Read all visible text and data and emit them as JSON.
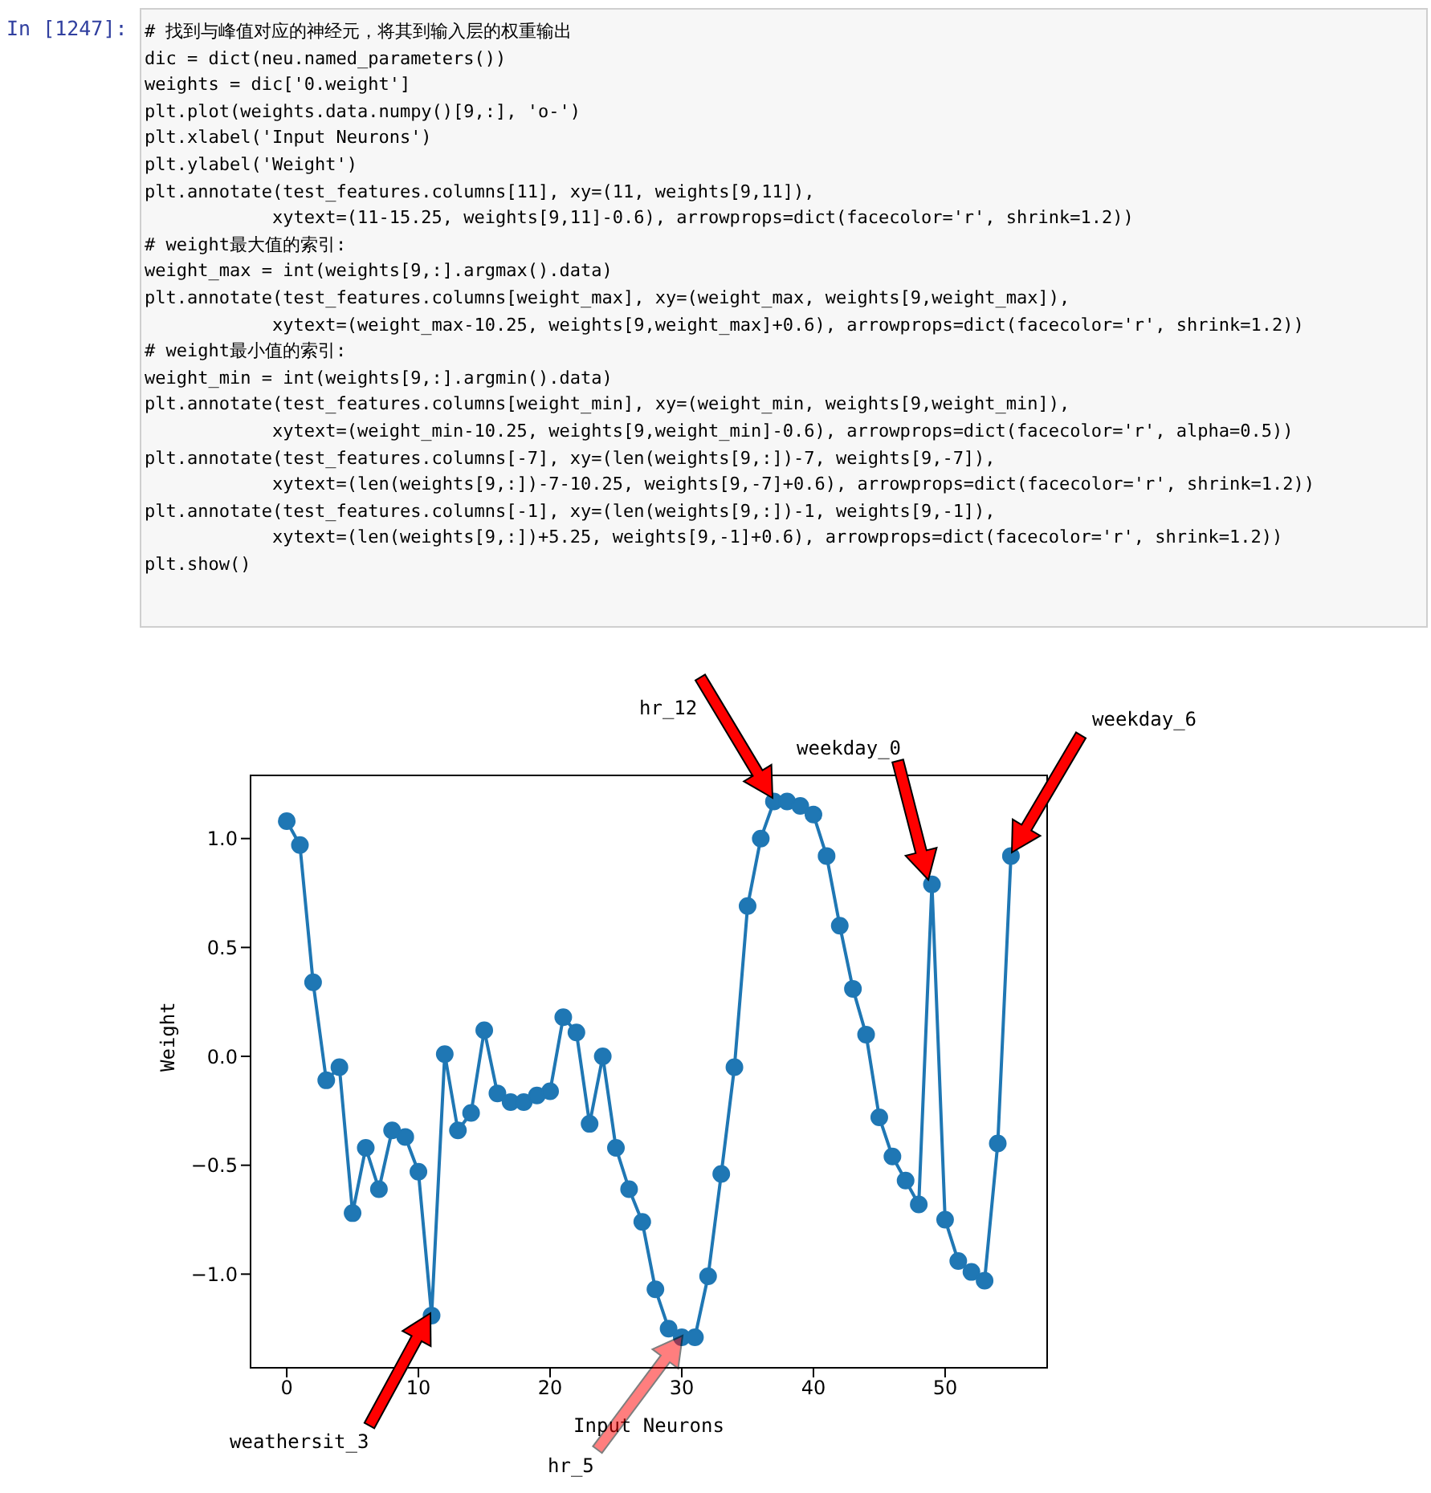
{
  "chart_data": {
    "type": "line",
    "xlabel": "Input Neurons",
    "ylabel": "Weight",
    "x": [
      0,
      1,
      2,
      3,
      4,
      5,
      6,
      7,
      8,
      9,
      10,
      11,
      12,
      13,
      14,
      15,
      16,
      17,
      18,
      19,
      20,
      21,
      22,
      23,
      24,
      25,
      26,
      27,
      28,
      29,
      30,
      31,
      32,
      33,
      34,
      35,
      36,
      37,
      38,
      39,
      40,
      41,
      42,
      43,
      44,
      45,
      46,
      47,
      48,
      49,
      50,
      51,
      52,
      53,
      54,
      55
    ],
    "series": [
      {
        "color": "#1f77b4",
        "values": [
          1.08,
          0.97,
          0.34,
          -0.11,
          -0.05,
          -0.72,
          -0.42,
          -0.61,
          -0.34,
          -0.37,
          -0.53,
          -1.19,
          0.01,
          -0.34,
          -0.26,
          0.12,
          -0.17,
          -0.21,
          -0.21,
          -0.18,
          -0.16,
          0.18,
          0.11,
          -0.31,
          0.0,
          -0.42,
          -0.61,
          -0.76,
          -1.07,
          -1.25,
          -1.29,
          -1.29,
          -1.01,
          -0.54,
          -0.05,
          0.69,
          1.0,
          1.17,
          1.17,
          1.15,
          1.11,
          0.92,
          0.6,
          0.31,
          0.1,
          -0.28,
          -0.46,
          -0.57,
          -0.68,
          0.79,
          -0.75,
          -0.94,
          -0.99,
          -1.03,
          -0.4,
          0.92
        ]
      }
    ],
    "xlim": [
      -2.75,
      57.75
    ],
    "xticks": [
      0,
      10,
      20,
      30,
      40,
      50
    ],
    "ylim": [
      -1.43,
      1.29
    ],
    "yticks": [
      {
        "value": -1,
        "label": "−1.0"
      },
      {
        "value": -0.5,
        "label": "−0.5"
      },
      {
        "value": 0,
        "label": "0.0"
      },
      {
        "value": 0.5,
        "label": "0.5"
      },
      {
        "value": 1,
        "label": "1.0"
      }
    ],
    "grid": false,
    "legend": false,
    "marker": "circle",
    "line_style": "solid",
    "annotations": [
      "weathersit_3",
      "hr_12",
      "hr_5",
      "weekday_0",
      "weekday_6",
      "In [1247]:",
      "# 找到与峰值对应的神经元，将其到输入层的权重输出",
      "dic = dict(neu.named_parameters())",
      "weights = dic['0.weight']",
      "plt.plot(weights.data.numpy()[9,:], 'o-')",
      "plt.xlabel('Input Neurons')",
      "plt.ylabel('Weight')",
      "plt.annotate(test_features.columns[11], xy=(11, weights[9,11]),",
      "            xytext=(11-15.25, weights[9,11]-0.6), arrowprops=dict(facecolor='r', shrink=1.2))",
      "# weight最大值的索引:",
      "weight_max = int(weights[9,:].argmax().data)",
      "plt.annotate(test_features.columns[weight_max], xy=(weight_max, weights[9,weight_max]),",
      "            xytext=(weight_max-10.25, weights[9,weight_max]+0.6), arrowprops=dict(facecolor='r', shrink=1.2))",
      "# weight最小值的索引:",
      "weight_min = int(weights[9,:].argmin().data)",
      "plt.annotate(test_features.columns[weight_min], xy=(weight_min, weights[9,weight_min]),",
      "            xytext=(weight_min-10.25, weights[9,weight_min]-0.6), arrowprops=dict(facecolor='r', alpha=0.5))",
      "plt.annotate(test_features.columns[-7], xy=(len(weights[9,:])-7, weights[9,-7]),",
      "            xytext=(len(weights[9,:])-7-10.25, weights[9,-7]+0.6), arrowprops=dict(facecolor='r', shrink=1.2))",
      "plt.annotate(test_features.columns[-1], xy=(len(weights[9,:])-1, weights[9,-1]),",
      "            xytext=(len(weights[9,:])+5.25, weights[9,-1]+0.6), arrowprops=dict(facecolor='r', shrink=1.2))",
      "plt.show()"
    ]
  }
}
